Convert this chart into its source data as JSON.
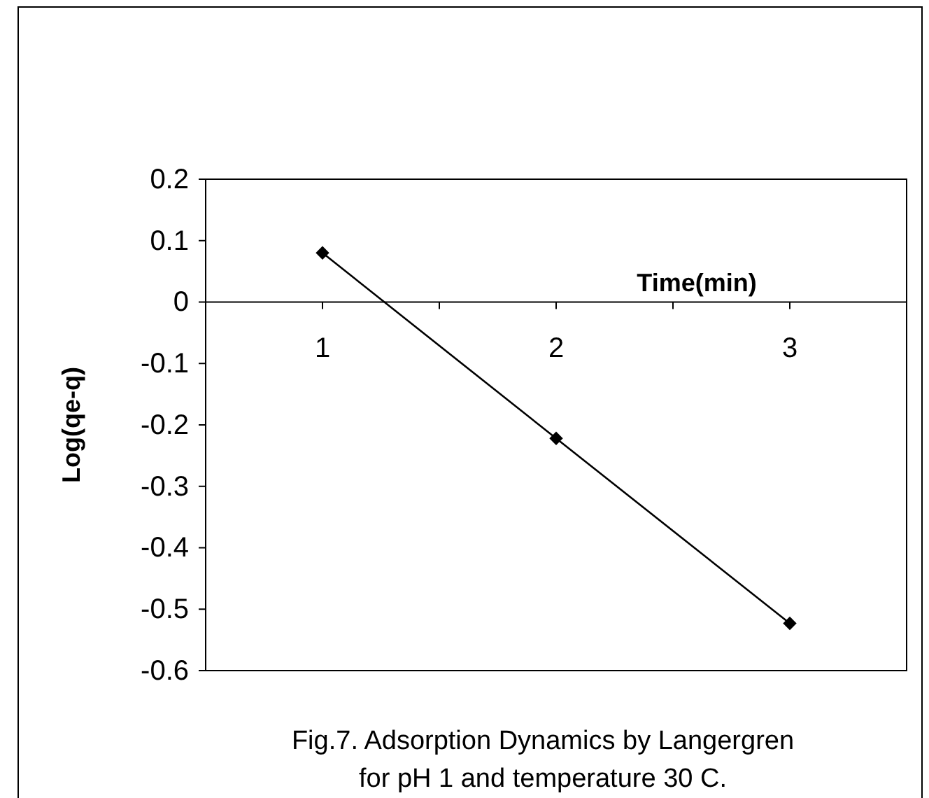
{
  "chart_data": {
    "type": "line",
    "categories": [
      "1",
      "2",
      "3"
    ],
    "series": [
      {
        "color": "#000000",
        "values": [
          0.08,
          -0.222,
          -0.523
        ]
      }
    ],
    "ylim": [
      -0.6,
      0.2
    ],
    "yticks": [
      -0.6,
      -0.5,
      -0.4,
      -0.3,
      -0.2,
      -0.1,
      0,
      0.1,
      0.2
    ],
    "xlabel": "Time(min)",
    "ylabel": "Log(qe-q)",
    "marker": "diamond",
    "line_style": "solid",
    "grid": false,
    "annotations": [
      "Fig.7. Adsorption Dynamics by Langergren",
      "for pH 1 and temperature 30 C."
    ]
  }
}
